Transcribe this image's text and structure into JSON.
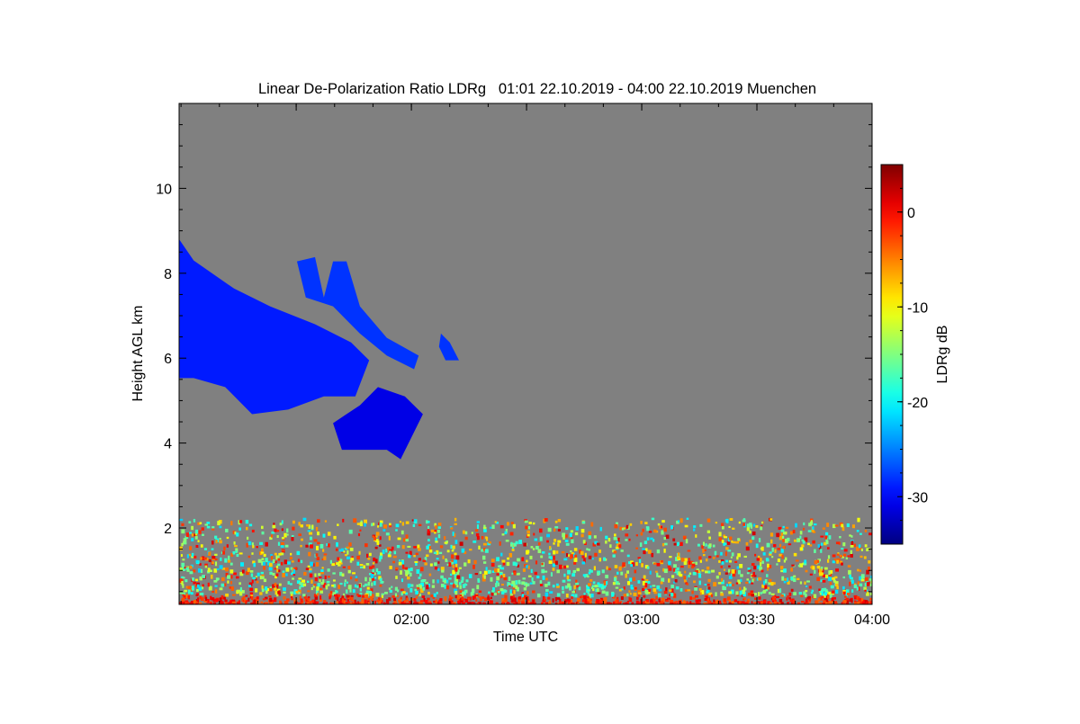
{
  "chart_data": {
    "type": "heatmap",
    "title": "Linear De-Polarization Ratio LDRg   01:01 22.10.2019 - 04:00 22.10.2019 Muenchen",
    "xlabel": "Time UTC",
    "ylabel": "Height AGL km",
    "colorbar_label": "LDRg dB",
    "xlim_minutes": [
      59.5,
      240
    ],
    "ylim": [
      0.2,
      12
    ],
    "clim": [
      -35,
      5
    ],
    "colormap": "jet",
    "background_color": "#808080",
    "x_ticks": [
      {
        "value": 90,
        "label": "01:30"
      },
      {
        "value": 120,
        "label": "02:00"
      },
      {
        "value": 150,
        "label": "02:30"
      },
      {
        "value": 180,
        "label": "03:00"
      },
      {
        "value": 210,
        "label": "03:30"
      },
      {
        "value": 240,
        "label": "04:00"
      }
    ],
    "y_ticks": [
      {
        "value": 2,
        "label": "2"
      },
      {
        "value": 4,
        "label": "4"
      },
      {
        "value": 6,
        "label": "6"
      },
      {
        "value": 8,
        "label": "8"
      },
      {
        "value": 10,
        "label": "10"
      }
    ],
    "colorbar_ticks": [
      {
        "value": 0,
        "label": "0"
      },
      {
        "value": -10,
        "label": "-10"
      },
      {
        "value": -20,
        "label": "-20"
      },
      {
        "value": -30,
        "label": "-30"
      }
    ],
    "features": [
      {
        "name": "cirrus-main",
        "ldr_db": -29,
        "points": [
          [
            59.5,
            8.8
          ],
          [
            63.3,
            8.3
          ],
          [
            73.8,
            7.64
          ],
          [
            83.2,
            7.22
          ],
          [
            94.9,
            6.8
          ],
          [
            104.3,
            6.37
          ],
          [
            109,
            5.95
          ],
          [
            105.4,
            5.1
          ],
          [
            97.2,
            5.1
          ],
          [
            87.9,
            4.79
          ],
          [
            78.5,
            4.68
          ],
          [
            71.5,
            5.32
          ],
          [
            63.3,
            5.53
          ],
          [
            59.5,
            5.53
          ]
        ]
      },
      {
        "name": "cirrus-upper",
        "ldr_db": -28,
        "points": [
          [
            90.2,
            8.28
          ],
          [
            94.9,
            8.38
          ],
          [
            97.2,
            7.43
          ],
          [
            99.6,
            8.28
          ],
          [
            103.1,
            8.28
          ],
          [
            106.6,
            7.22
          ],
          [
            113.6,
            6.48
          ],
          [
            121.9,
            6.06
          ],
          [
            120.7,
            5.74
          ],
          [
            113.6,
            6.06
          ],
          [
            106.6,
            6.58
          ],
          [
            99.6,
            7.22
          ],
          [
            92.5,
            7.43
          ]
        ]
      },
      {
        "name": "cloud-lower",
        "ldr_db": -31,
        "points": [
          [
            99.6,
            4.47
          ],
          [
            106.6,
            4.89
          ],
          [
            111.3,
            5.32
          ],
          [
            118.3,
            5.1
          ],
          [
            123,
            4.68
          ],
          [
            120.7,
            4.26
          ],
          [
            117.2,
            3.62
          ],
          [
            113.6,
            3.84
          ],
          [
            107.8,
            3.84
          ],
          [
            101.9,
            3.84
          ]
        ]
      },
      {
        "name": "cloud-small",
        "ldr_db": -28,
        "points": [
          [
            127.7,
            6.58
          ],
          [
            130,
            6.37
          ],
          [
            132.4,
            5.95
          ],
          [
            128.9,
            5.95
          ],
          [
            127.2,
            6.27
          ]
        ]
      }
    ],
    "boundary_layer": {
      "height_range_km": [
        0.2,
        2.2
      ],
      "ldr_range_db": [
        -22,
        2
      ]
    }
  }
}
